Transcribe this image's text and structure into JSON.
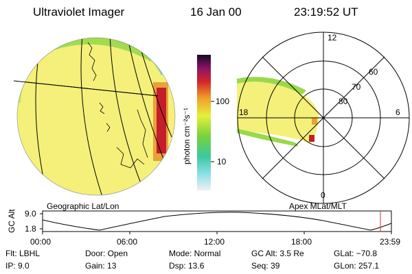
{
  "header": {
    "title": "Ultraviolet Imager",
    "date": "16 Jan 00",
    "time": "23:19:52 UT"
  },
  "left_panel": {
    "label": "Geographic Lat/Lon"
  },
  "right_panel": {
    "label": "Apex MLat/MLT",
    "mlt_labels": {
      "top": "12",
      "left": "18",
      "right": "6",
      "bottom": "0"
    },
    "lat_labels": [
      "60",
      "70",
      "80"
    ]
  },
  "colorbar": {
    "unit_label": "photon cm⁻²s⁻¹",
    "ticks": [
      "100",
      "10"
    ]
  },
  "timeline": {
    "axis_label": "GC Alt",
    "y_ticks": [
      "9.0",
      "1.8"
    ],
    "x_ticks": [
      "00:00",
      "06:00",
      "12:00",
      "18:00",
      "23:59"
    ],
    "marker_color": "#cc3333"
  },
  "footer": {
    "flt": "Flt: LBHL",
    "ip": "IP:  9.0",
    "door": "Door: Open",
    "gain": "Gain: 13",
    "mode": "Mode: Normal",
    "dsp": "Dsp:   13.6",
    "gcalt": "GC Alt: 3.5 Re",
    "seq": "Seq: 39",
    "glat": "GLat:  −70.8",
    "glon": "GLon: 257.1"
  }
}
